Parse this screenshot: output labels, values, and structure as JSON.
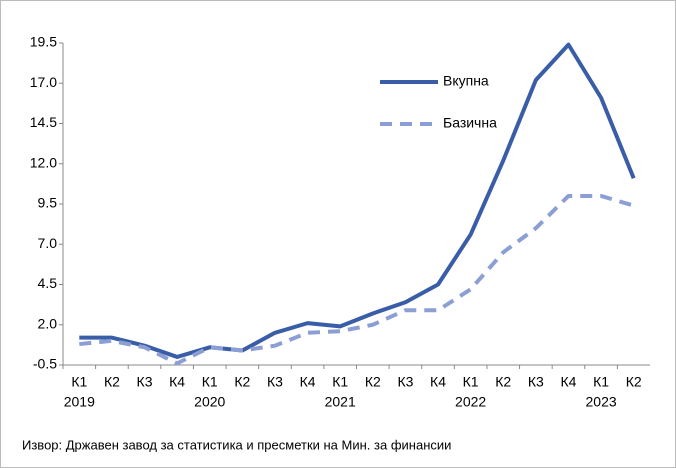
{
  "chart_data": {
    "type": "line",
    "categories": [
      "К1",
      "К2",
      "К3",
      "К4",
      "К1",
      "К2",
      "К3",
      "К4",
      "К1",
      "К2",
      "К3",
      "К4",
      "К1",
      "К2",
      "К3",
      "К4",
      "К1",
      "К2"
    ],
    "category_years": [
      "2019",
      null,
      null,
      null,
      "2020",
      null,
      null,
      null,
      "2021",
      null,
      null,
      null,
      "2022",
      null,
      null,
      null,
      "2023",
      null
    ],
    "series": [
      {
        "name": "Вкупна",
        "color": "#3a5da8",
        "dash": false,
        "values": [
          1.2,
          1.2,
          0.7,
          0.0,
          0.6,
          0.4,
          1.5,
          2.1,
          1.9,
          2.7,
          3.4,
          4.5,
          7.6,
          12.2,
          17.2,
          19.4,
          16.1,
          11.1
        ]
      },
      {
        "name": "Базична",
        "color": "#8c9fd4",
        "dash": true,
        "values": [
          0.8,
          1.0,
          0.6,
          -0.4,
          0.6,
          0.4,
          0.7,
          1.5,
          1.6,
          2.0,
          2.9,
          2.9,
          4.2,
          6.5,
          8.0,
          10.0,
          10.0,
          9.4
        ]
      }
    ],
    "ylim": [
      -0.5,
      19.5
    ],
    "yticks": [
      -0.5,
      {
        "value": 2,
        "label": "2.0"
      },
      4.5,
      {
        "value": 7,
        "label": "7.0"
      },
      9.5,
      {
        "value": 12,
        "label": "12.0"
      },
      14.5,
      {
        "value": 17,
        "label": "17.0"
      },
      19.5
    ],
    "source": "Извор: Државен завод за статистика  и пресметки на Мин. за финансии"
  }
}
